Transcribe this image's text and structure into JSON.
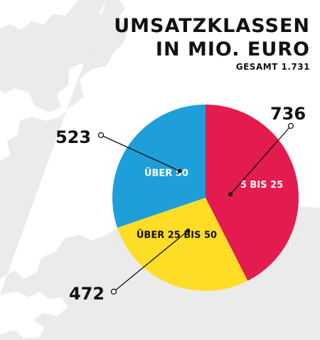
{
  "title_lines": [
    "UMSATZKLASSEN",
    "IN MIO. EURO"
  ],
  "subtitle": "GESAMT 1.731",
  "colors": {
    "background": "#ffffff",
    "map": "#ebebeb",
    "text": "#111111"
  },
  "chart_data": {
    "type": "pie",
    "title": "UMSATZKLASSEN IN MIO. EURO",
    "subtitle": "GESAMT 1.731",
    "total": 1731,
    "slices": [
      {
        "label": "5 BIS 25",
        "value": 736,
        "value_label": "736",
        "color": "#e31b4f"
      },
      {
        "label": "ÜBER 25 BIS 50",
        "value": 472,
        "value_label": "472",
        "color": "#fedd26"
      },
      {
        "label": "ÜBER 50",
        "value": 523,
        "value_label": "523",
        "color": "#1e9fd9"
      }
    ]
  }
}
